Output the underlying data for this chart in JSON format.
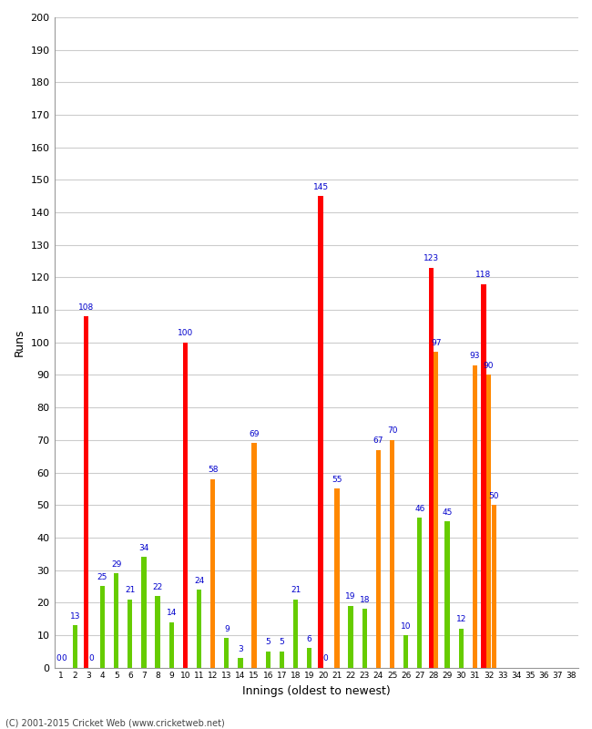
{
  "xlabel": "Innings (oldest to newest)",
  "ylabel": "Runs",
  "ylim": [
    0,
    200
  ],
  "yticks": [
    0,
    10,
    20,
    30,
    40,
    50,
    60,
    70,
    80,
    90,
    100,
    110,
    120,
    130,
    140,
    150,
    160,
    170,
    180,
    190,
    200
  ],
  "footer": "(C) 2001-2015 Cricket Web (www.cricketweb.net)",
  "color_map": {
    "red": "#ff0000",
    "green": "#66cc00",
    "orange": "#ff8800"
  },
  "label_color": "#0000cc",
  "label_fontsize": 6.5,
  "bg_color": "#ffffff",
  "grid_color": "#cccccc",
  "innings_data": [
    {
      "bars": [
        [
          0,
          "green"
        ],
        [
          0,
          "green"
        ]
      ]
    },
    {
      "bars": [
        [
          13,
          "green"
        ]
      ]
    },
    {
      "bars": [
        [
          108,
          "red"
        ],
        [
          0,
          "green"
        ]
      ]
    },
    {
      "bars": [
        [
          25,
          "green"
        ]
      ]
    },
    {
      "bars": [
        [
          29,
          "green"
        ]
      ]
    },
    {
      "bars": [
        [
          21,
          "green"
        ]
      ]
    },
    {
      "bars": [
        [
          34,
          "green"
        ]
      ]
    },
    {
      "bars": [
        [
          22,
          "green"
        ]
      ]
    },
    {
      "bars": [
        [
          14,
          "green"
        ]
      ]
    },
    {
      "bars": [
        [
          100,
          "red"
        ]
      ]
    },
    {
      "bars": [
        [
          24,
          "green"
        ]
      ]
    },
    {
      "bars": [
        [
          58,
          "orange"
        ]
      ]
    },
    {
      "bars": [
        [
          9,
          "green"
        ]
      ]
    },
    {
      "bars": [
        [
          3,
          "green"
        ]
      ]
    },
    {
      "bars": [
        [
          69,
          "orange"
        ]
      ]
    },
    {
      "bars": [
        [
          5,
          "green"
        ]
      ]
    },
    {
      "bars": [
        [
          5,
          "green"
        ]
      ]
    },
    {
      "bars": [
        [
          21,
          "green"
        ]
      ]
    },
    {
      "bars": [
        [
          6,
          "green"
        ]
      ]
    },
    {
      "bars": [
        [
          145,
          "red"
        ],
        [
          0,
          "green"
        ]
      ]
    },
    {
      "bars": [
        [
          55,
          "orange"
        ]
      ]
    },
    {
      "bars": [
        [
          19,
          "green"
        ]
      ]
    },
    {
      "bars": [
        [
          18,
          "green"
        ]
      ]
    },
    {
      "bars": [
        [
          67,
          "orange"
        ]
      ]
    },
    {
      "bars": [
        [
          70,
          "orange"
        ]
      ]
    },
    {
      "bars": [
        [
          10,
          "green"
        ]
      ]
    },
    {
      "bars": [
        [
          46,
          "green"
        ]
      ]
    },
    {
      "bars": [
        [
          123,
          "red"
        ],
        [
          97,
          "orange"
        ]
      ]
    },
    {
      "bars": [
        [
          45,
          "green"
        ]
      ]
    },
    {
      "bars": [
        [
          12,
          "green"
        ]
      ]
    },
    {
      "bars": [
        [
          93,
          "orange"
        ]
      ]
    },
    {
      "bars": [
        [
          118,
          "red"
        ],
        [
          90,
          "orange"
        ],
        [
          50,
          "orange"
        ]
      ]
    },
    {
      "bars": []
    },
    {
      "bars": []
    },
    {
      "bars": []
    },
    {
      "bars": []
    },
    {
      "bars": []
    },
    {
      "bars": []
    }
  ],
  "num_innings": 38,
  "figsize": [
    6.5,
    8.0
  ],
  "dpi": 100
}
